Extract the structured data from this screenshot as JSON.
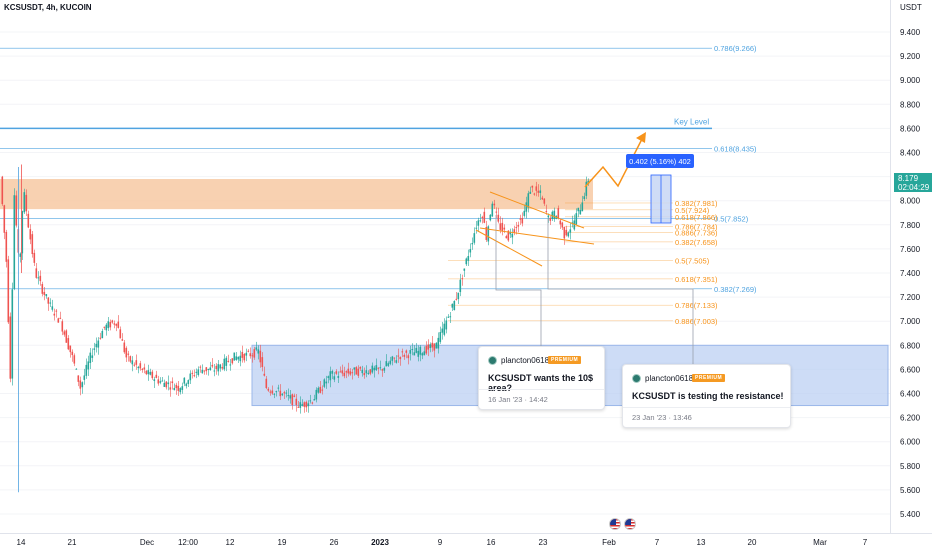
{
  "header": {
    "symbol_title": "KCSUSDT, 4h, KUCOIN",
    "axis_title": "USDT"
  },
  "price_tag": {
    "price": "8.179",
    "countdown": "02:04:29"
  },
  "colors": {
    "up": "#26a69a",
    "down": "#ef5350",
    "resistance_zone": "#f7c9a3",
    "support_zone": "#bcd0f3",
    "fib_orange": "#f7931a",
    "fib_blue": "#4fa3e0",
    "measure": "#2962ff"
  },
  "chart_data": {
    "type": "candlestick",
    "title": "KCSUSDT, 4h, KUCOIN",
    "ylabel": "USDT",
    "ylim": [
      5.3,
      9.5
    ],
    "y_ticks": [
      "9.400",
      "9.200",
      "9.000",
      "8.800",
      "8.600",
      "8.400",
      "8.200",
      "8.000",
      "7.800",
      "7.600",
      "7.400",
      "7.200",
      "7.000",
      "6.800",
      "6.600",
      "6.400",
      "6.200",
      "6.000",
      "5.800",
      "5.600",
      "5.400"
    ],
    "x_ticks": [
      "14",
      "21",
      "Dec",
      "12:00",
      "12",
      "19",
      "26",
      "2023",
      "9",
      "16",
      "23",
      "Feb",
      "7",
      "13",
      "20",
      "Mar",
      "7"
    ],
    "x_ticks_bold": [
      "2023"
    ],
    "series_summary": [
      {
        "date": "14 Nov",
        "high": 8.22,
        "low": 5.58
      },
      {
        "date": "30 Nov",
        "high": 7.05,
        "low": 6.4
      },
      {
        "date": "13 Dec",
        "high": 6.82,
        "low": 6.6
      },
      {
        "date": "22 Dec",
        "high": 6.45,
        "low": 6.28
      },
      {
        "date": "7 Jan",
        "high": 6.82,
        "low": 6.72
      },
      {
        "date": "14 Jan",
        "high": 8.02,
        "low": 7.6
      },
      {
        "date": "21 Jan",
        "high": 8.18,
        "low": 7.82
      },
      {
        "date": "25 Jan",
        "high": 7.92,
        "low": 7.68
      },
      {
        "date": "28 Jan",
        "high": 8.19,
        "low": 7.98
      }
    ],
    "levels": {
      "key_level": {
        "label": "Key Level",
        "price": 8.6
      },
      "resistance_zone": {
        "top": 8.18,
        "bottom": 7.93
      },
      "support_zone": {
        "top": 6.8,
        "bottom": 6.3
      },
      "fib_blue": [
        {
          "label": "0.786(9.266)",
          "price": 9.266
        },
        {
          "label": "0.618(8.435)",
          "price": 8.435
        },
        {
          "label": "0.5(7.852)",
          "price": 7.852
        },
        {
          "label": "0.382(7.269)",
          "price": 7.269
        }
      ],
      "fib_orange": [
        {
          "label": "0.382(7.981)",
          "price": 7.981
        },
        {
          "label": "0.5(7.924)",
          "price": 7.924
        },
        {
          "label": "0.618(7.866)",
          "price": 7.866
        },
        {
          "label": "0.786(7.784)",
          "price": 7.784
        },
        {
          "label": "0.886(7.736)",
          "price": 7.736
        },
        {
          "label": "0.382(7.658)",
          "price": 7.658
        },
        {
          "label": "0.5(7.505)",
          "price": 7.505
        },
        {
          "label": "0.618(7.351)",
          "price": 7.351
        },
        {
          "label": "0.786(7.133)",
          "price": 7.133
        },
        {
          "label": "0.886(7.003)",
          "price": 7.003
        }
      ]
    },
    "measure_label": "0.402 (5.16%) 402"
  },
  "ideas": [
    {
      "user": "plancton0618",
      "badge": "PREMIUM",
      "headline": "KCSUSDT wants the 10$ area?",
      "timestamp": "16 Jan '23 · 14:42"
    },
    {
      "user": "plancton0618",
      "badge": "PREMIUM",
      "headline": "KCSUSDT is testing the resistance!",
      "timestamp": "23 Jan '23 · 13:46"
    }
  ],
  "icons": {
    "event_flags": [
      "us-flag-icon",
      "us-flag-icon"
    ]
  }
}
